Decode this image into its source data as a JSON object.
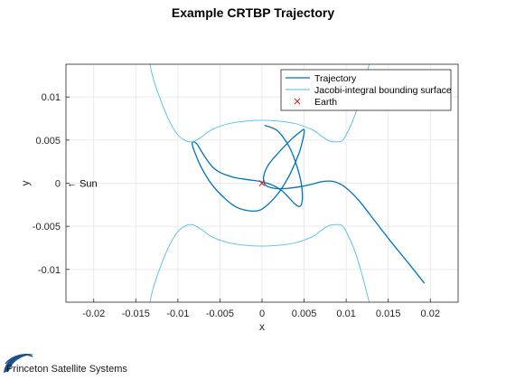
{
  "chart_data": {
    "type": "line",
    "title": "Example CRTBP Trajectory",
    "xlabel": "x",
    "ylabel": "y",
    "xlim": [
      -0.0233,
      0.0233
    ],
    "ylim": [
      -0.0138,
      0.0138
    ],
    "x_ticks": [
      -0.02,
      -0.015,
      -0.01,
      -0.005,
      0,
      0.005,
      0.01,
      0.015,
      0.02
    ],
    "x_tick_labels": [
      "-0.02",
      "-0.015",
      "-0.01",
      "-0.005",
      "0",
      "0.005",
      "0.01",
      "0.015",
      "0.02"
    ],
    "y_ticks": [
      0.01,
      0.005,
      0,
      -0.005,
      -0.01
    ],
    "y_tick_labels": [
      "0.01",
      "0.005",
      "0",
      "-0.005",
      "-0.01"
    ],
    "grid": true,
    "legend_position": "top-right",
    "series": [
      {
        "name": "Trajectory",
        "color": "#0072BD",
        "style": "line",
        "x": [
          0.0193,
          0.0175,
          0.0155,
          0.0135,
          0.0115,
          0.0098,
          0.0085,
          0.0072,
          0.006,
          0.0045,
          0.003,
          0.0015,
          0.0004,
          0.0002,
          0.0008,
          0.0022,
          0.0036,
          0.0046,
          0.005,
          0.0049,
          0.0044,
          0.0034,
          0.0022,
          0.001,
          -0.0002,
          -0.0015,
          -0.003,
          -0.0045,
          -0.006,
          -0.0072,
          -0.008,
          -0.0083,
          -0.0081,
          -0.0077,
          -0.0072,
          -0.0066,
          -0.0059,
          -0.0051,
          -0.0041,
          -0.003,
          -0.0016,
          -0.0002,
          0.0012,
          0.0024,
          0.0032,
          0.0039,
          0.0044,
          0.0047,
          0.0048,
          0.0046,
          0.0041,
          0.0034,
          0.0026,
          0.0018,
          0.001,
          0.0003
        ],
        "y": [
          -0.0116,
          -0.0094,
          -0.007,
          -0.0045,
          -0.002,
          -0.0004,
          0.0002,
          0.0002,
          -0.0001,
          -0.0004,
          -0.0006,
          -0.0006,
          -0.0002,
          0.0008,
          0.0022,
          0.0038,
          0.0052,
          0.006,
          0.0062,
          0.0053,
          0.0035,
          0.0012,
          -0.0008,
          -0.0022,
          -0.0031,
          -0.0032,
          -0.0028,
          -0.0017,
          -0.0001,
          0.0018,
          0.0036,
          0.0046,
          0.0048,
          0.0045,
          0.0037,
          0.0028,
          0.0019,
          0.0013,
          0.0009,
          0.0006,
          0.0004,
          0.0002,
          -0.0002,
          -0.0009,
          -0.0017,
          -0.0024,
          -0.0027,
          -0.0024,
          -0.0013,
          0.0003,
          0.0021,
          0.0039,
          0.0052,
          0.0061,
          0.0065,
          0.0067
        ]
      },
      {
        "name": "Jacobi-integral bounding surface",
        "color": "#4DBEEE",
        "style": "line",
        "x": [
          -0.0135,
          -0.013,
          -0.012,
          -0.011,
          -0.01,
          -0.009,
          -0.0085,
          -0.008,
          -0.007,
          -0.006,
          -0.004,
          -0.002,
          0,
          0.002,
          0.004,
          0.006,
          0.007,
          0.008,
          0.009,
          0.0095,
          0.01,
          0.011,
          0.0118,
          0.0125,
          0.013
        ],
        "y": [
          0.0148,
          0.0124,
          0.0095,
          0.0072,
          0.0056,
          0.0049,
          0.0048,
          0.0049,
          0.0055,
          0.0062,
          0.0069,
          0.0072,
          0.0073,
          0.0072,
          0.0069,
          0.0062,
          0.0055,
          0.0049,
          0.0048,
          0.0049,
          0.0056,
          0.0078,
          0.0103,
          0.0129,
          0.0148
        ]
      },
      {
        "name": "",
        "color": "#4DBEEE",
        "style": "line",
        "x": [
          -0.0135,
          -0.013,
          -0.012,
          -0.011,
          -0.01,
          -0.009,
          -0.0085,
          -0.008,
          -0.007,
          -0.006,
          -0.004,
          -0.002,
          0,
          0.002,
          0.004,
          0.006,
          0.007,
          0.008,
          0.009,
          0.0095,
          0.01,
          0.011,
          0.0118,
          0.0125,
          0.013
        ],
        "y": [
          -0.0148,
          -0.0124,
          -0.0095,
          -0.0072,
          -0.0056,
          -0.0049,
          -0.0048,
          -0.0049,
          -0.0055,
          -0.0062,
          -0.0069,
          -0.0072,
          -0.0073,
          -0.0072,
          -0.0069,
          -0.0062,
          -0.0055,
          -0.0049,
          -0.0048,
          -0.0049,
          -0.0056,
          -0.0078,
          -0.0103,
          -0.0129,
          -0.0148
        ]
      },
      {
        "name": "Earth",
        "color": "#D62728",
        "style": "marker-x",
        "x": [
          0
        ],
        "y": [
          0
        ]
      }
    ],
    "annotations": [
      {
        "text": "← Sun",
        "x": -0.0233,
        "y": 0
      }
    ]
  },
  "footer": {
    "logo_text": "Princeton Satellite Systems"
  }
}
